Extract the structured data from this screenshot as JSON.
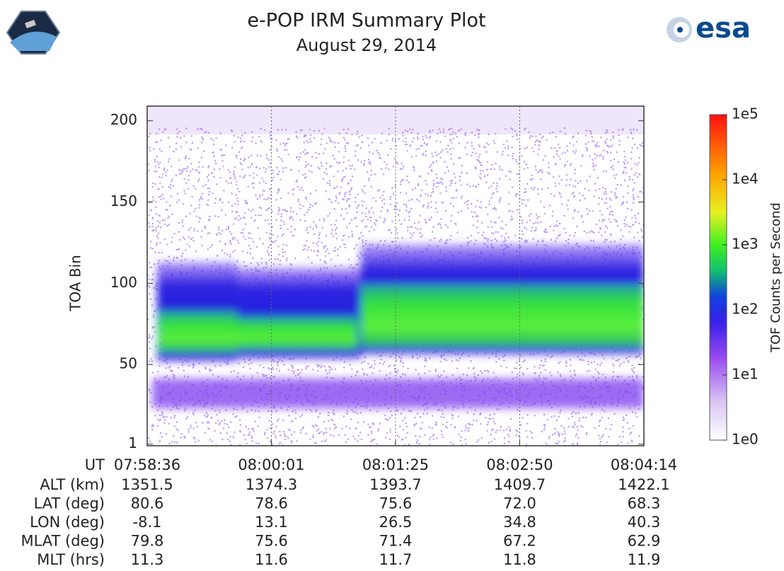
{
  "header": {
    "logo_text": "esa"
  },
  "chart_data": {
    "type": "heatmap",
    "title": "e-POP IRM Summary Plot",
    "subtitle": "August 29, 2014",
    "ylabel": "TOA Bin",
    "ylim": [
      0,
      209
    ],
    "yticks": [
      1,
      50,
      100,
      150,
      200
    ],
    "xlabel": "UT",
    "categories": [
      "07:58:36",
      "08:00:01",
      "08:01:25",
      "08:02:50",
      "08:04:14"
    ],
    "grid": true,
    "ephemeris": [
      {
        "label": "ALT (km)",
        "values": [
          "1351.5",
          "1374.3",
          "1393.7",
          "1409.7",
          "1422.1"
        ]
      },
      {
        "label": "LAT (deg)",
        "values": [
          "80.6",
          "78.6",
          "75.6",
          "72.0",
          "68.3"
        ]
      },
      {
        "label": "LON (deg)",
        "values": [
          "-8.1",
          "13.1",
          "26.5",
          "34.8",
          "40.3"
        ]
      },
      {
        "label": "MLAT (deg)",
        "values": [
          "79.8",
          "75.6",
          "71.4",
          "67.2",
          "62.9"
        ]
      },
      {
        "label": "MLT (hrs)",
        "values": [
          "11.3",
          "11.6",
          "11.7",
          "11.8",
          "11.9"
        ]
      }
    ],
    "colorbar": {
      "label": "TOF Counts per Second",
      "scale": "log",
      "lim": [
        1,
        100000
      ],
      "ticks": [
        {
          "value": 1,
          "label": "1e0"
        },
        {
          "value": 10,
          "label": "1e1"
        },
        {
          "value": 100,
          "label": "1e2"
        },
        {
          "value": 1000,
          "label": "1e3"
        },
        {
          "value": 10000,
          "label": "1e4"
        },
        {
          "value": 100000,
          "label": "1e5"
        }
      ]
    }
  }
}
